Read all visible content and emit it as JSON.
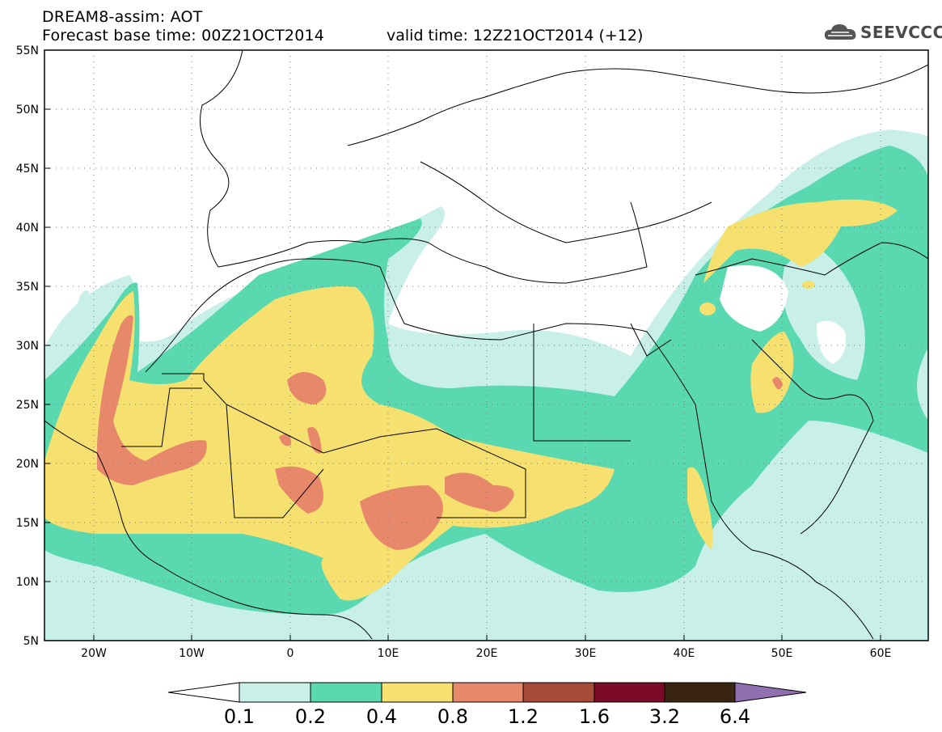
{
  "header": {
    "title": "DREAM8-assim: AOT",
    "base_time": "Forecast base time: 00Z21OCT2014",
    "valid_time": "valid time: 12Z21OCT2014 (+12)"
  },
  "logo": {
    "text": "SEEVCCC",
    "icon": "cloud-icon"
  },
  "map": {
    "lat_labels": [
      "55N",
      "50N",
      "45N",
      "40N",
      "35N",
      "30N",
      "25N",
      "20N",
      "15N",
      "10N",
      "5N"
    ],
    "lon_labels": [
      "20W",
      "10W",
      "0",
      "10E",
      "20E",
      "30E",
      "40E",
      "50E",
      "60E"
    ],
    "lat_range": [
      5,
      55
    ],
    "lon_range": [
      -25,
      65
    ],
    "grid": "dotted"
  },
  "legend": {
    "levels": [
      "0.1",
      "0.2",
      "0.4",
      "0.8",
      "1.2",
      "1.6",
      "3.2",
      "6.4"
    ],
    "colors": {
      "under": "#ffffff",
      "c1": "#c8f0e8",
      "c2": "#5ad8b0",
      "c3": "#f5e070",
      "c4": "#e8886a",
      "c5": "#a84a3a",
      "c6": "#7a0a28",
      "c7": "#3a2412",
      "over": "#9070b0"
    }
  }
}
